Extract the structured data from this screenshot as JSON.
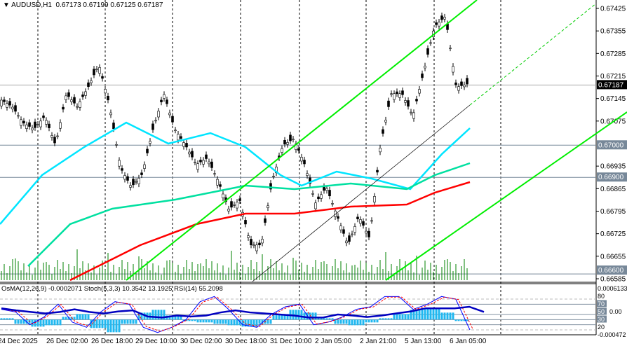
{
  "header": {
    "arrow_icon": "triangle-down-icon",
    "symbol": "AUDUSD,H1",
    "ohlc": "0.67173 0.67199 0.67125 0.67187"
  },
  "indicator_header": "OsMA(12,26,9) -0.0002071  Stoch(5,3,3) 10.3542 13.1925  RSI(14) 55.2098",
  "chart_data": {
    "type": "candlestick",
    "symbol": "AUDUSD",
    "timeframe": "H1",
    "ylim": [
      0.66585,
      0.67425
    ],
    "price_ticks": [
      "0.67425",
      "0.67355",
      "0.67285",
      "0.67215",
      "0.67145",
      "0.67075",
      "0.66935",
      "0.66865",
      "0.66795",
      "0.66725",
      "0.66655",
      "0.66585"
    ],
    "price_levels": [
      {
        "value": "0.67187",
        "kind": "current",
        "color": "#000000"
      },
      {
        "value": "0.67000",
        "kind": "level",
        "color": "#778899"
      },
      {
        "value": "0.66900",
        "kind": "level",
        "color": "#778899"
      },
      {
        "value": "0.66600",
        "kind": "level",
        "color": "#778899"
      }
    ],
    "time_ticks": [
      "24 Dec 2025",
      "26 Dec 02:00",
      "26 Dec 18:00",
      "29 Dec 10:00",
      "30 Dec 02:00",
      "30 Dec 18:00",
      "31 Dec 10:00",
      "2 Jan 05:00",
      "2 Jan 21:00",
      "5 Jan 13:00",
      "6 Jan 05:00"
    ],
    "close_path": [
      0.6714,
      0.6712,
      0.6707,
      0.6705,
      0.6709,
      0.67,
      0.6716,
      0.6712,
      0.6718,
      0.6725,
      0.6712,
      0.6693,
      0.6687,
      0.6691,
      0.6705,
      0.6716,
      0.6705,
      0.67,
      0.6694,
      0.6696,
      0.6689,
      0.668,
      0.6683,
      0.6669,
      0.6669,
      0.6689,
      0.67,
      0.6702,
      0.6694,
      0.6682,
      0.6687,
      0.6678,
      0.6669,
      0.6678,
      0.6671,
      0.67,
      0.6716,
      0.6716,
      0.6709,
      0.6723,
      0.6737,
      0.674,
      0.6718,
      0.6719
    ],
    "ma_colors": [
      "#00e5ff",
      "#00e0a0",
      "#ff0000"
    ],
    "channel_color": "#00ee00",
    "osc_ticks": [
      "0.0006133",
      "80",
      "70",
      "50",
      "30",
      "20",
      "-0.000472"
    ],
    "osc_scale_ticks": [
      "0.00"
    ]
  }
}
